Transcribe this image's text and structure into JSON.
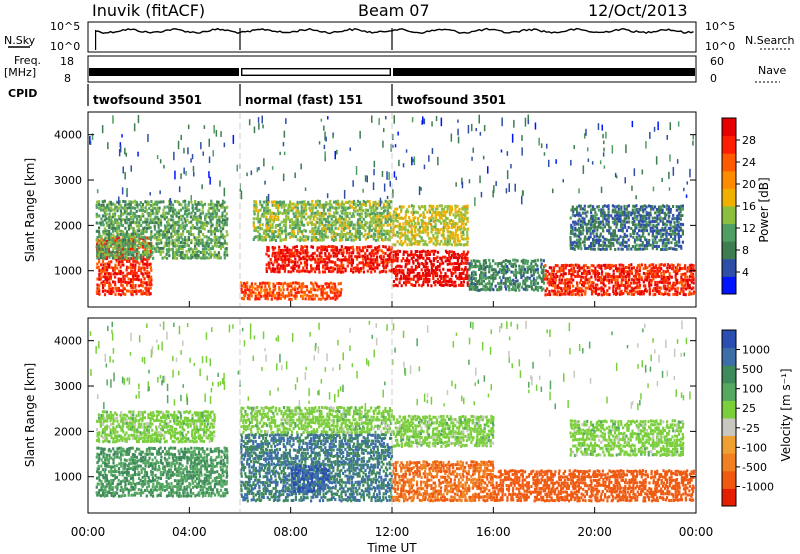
{
  "header": {
    "station": "Inuvik (fitACF)",
    "beam": "Beam 07",
    "date": "12/Oct/2013"
  },
  "top_panels": {
    "nsky_label": "N.Sky",
    "nsky_ticks": [
      "10^5",
      "10^0"
    ],
    "nsearch_label": "N.Search",
    "nsearch_ticks": [
      "10^5",
      "10^0"
    ],
    "freq_label_1": "Freq.",
    "freq_label_2": "[MHz]",
    "freq_ticks": [
      "18",
      "8"
    ],
    "nave_label": "Nave",
    "nave_ticks": [
      "60",
      "0"
    ],
    "cpid_label": "CPID",
    "cpid_segments": [
      {
        "label": "twofsound 3501",
        "start_hour": 0,
        "end_hour": 6
      },
      {
        "label": "normal (fast) 151",
        "start_hour": 6,
        "end_hour": 12
      },
      {
        "label": "twofsound 3501",
        "start_hour": 12,
        "end_hour": 24
      }
    ]
  },
  "axes": {
    "ylabel": "Slant Range [km]",
    "yticks": [
      "1000",
      "2000",
      "3000",
      "4000"
    ],
    "xticks": [
      "00:00",
      "04:00",
      "08:00",
      "12:00",
      "16:00",
      "20:00",
      "00:00"
    ],
    "xlabel": "Time UT"
  },
  "colorbars": {
    "power": {
      "label": "Power [dB]",
      "ticks": [
        "4",
        "8",
        "12",
        "16",
        "20",
        "24",
        "28"
      ],
      "colors": [
        "#0014ff",
        "#2e4ea8",
        "#3d7d50",
        "#4f9e63",
        "#8dbf3f",
        "#f0b000",
        "#ff8c00",
        "#ff5a00",
        "#ff1e00",
        "#e60000"
      ]
    },
    "velocity": {
      "label": "Velocity [m s⁻¹]",
      "ticks": [
        "1000",
        "500",
        "100",
        "25",
        "-25",
        "-100",
        "-500",
        "-1000"
      ],
      "colors": [
        "#2a4fb0",
        "#3d6ea8",
        "#3f8a5a",
        "#55a860",
        "#7ccf3c",
        "#c8c8c0",
        "#f0a030",
        "#f08020",
        "#f05a10",
        "#e61e00"
      ]
    }
  },
  "chart_data": [
    {
      "type": "heatmap",
      "title": "Power",
      "x_range_hours": [
        0,
        24
      ],
      "y_range_km": [
        200,
        4500
      ],
      "value_label": "Power [dB]",
      "blobs": [
        {
          "t0": 0.3,
          "t1": 2.5,
          "r0": 500,
          "r1": 1800,
          "v": 26
        },
        {
          "t0": 0.3,
          "t1": 5.5,
          "r0": 1300,
          "r1": 2600,
          "v": 12
        },
        {
          "t0": 6.0,
          "t1": 10.0,
          "r0": 400,
          "r1": 800,
          "v": 24
        },
        {
          "t0": 7.0,
          "t1": 12.0,
          "r0": 1000,
          "r1": 1600,
          "v": 27
        },
        {
          "t0": 6.5,
          "t1": 12.0,
          "r0": 1700,
          "r1": 2600,
          "v": 14
        },
        {
          "t0": 12.0,
          "t1": 15.0,
          "r0": 700,
          "r1": 1500,
          "v": 28
        },
        {
          "t0": 12.0,
          "t1": 15.0,
          "r0": 1600,
          "r1": 2500,
          "v": 16
        },
        {
          "t0": 15.0,
          "t1": 18.0,
          "r0": 600,
          "r1": 1300,
          "v": 10
        },
        {
          "t0": 18.0,
          "t1": 24.0,
          "r0": 500,
          "r1": 1200,
          "v": 26
        },
        {
          "t0": 19.0,
          "t1": 23.5,
          "r0": 1500,
          "r1": 2500,
          "v": 8
        }
      ]
    },
    {
      "type": "heatmap",
      "title": "Velocity",
      "x_range_hours": [
        0,
        24
      ],
      "y_range_km": [
        200,
        4500
      ],
      "value_label": "Velocity [m s-1]",
      "blobs": [
        {
          "t0": 0.3,
          "t1": 5.5,
          "r0": 600,
          "r1": 1700,
          "v": 60
        },
        {
          "t0": 0.3,
          "t1": 5.0,
          "r0": 1800,
          "r1": 2500,
          "v": 0
        },
        {
          "t0": 6.0,
          "t1": 12.0,
          "r0": 500,
          "r1": 2000,
          "v": 300
        },
        {
          "t0": 8.0,
          "t1": 9.5,
          "r0": 700,
          "r1": 1300,
          "v": 800
        },
        {
          "t0": 6.0,
          "t1": 12.0,
          "r0": 2000,
          "r1": 2600,
          "v": 0
        },
        {
          "t0": 12.0,
          "t1": 16.0,
          "r0": 500,
          "r1": 1400,
          "v": -300
        },
        {
          "t0": 12.0,
          "t1": 16.0,
          "r0": 1700,
          "r1": 2400,
          "v": 0
        },
        {
          "t0": 16.0,
          "t1": 24.0,
          "r0": 500,
          "r1": 1200,
          "v": -400
        },
        {
          "t0": 19.0,
          "t1": 23.5,
          "r0": 1500,
          "r1": 2300,
          "v": 0
        }
      ]
    }
  ]
}
